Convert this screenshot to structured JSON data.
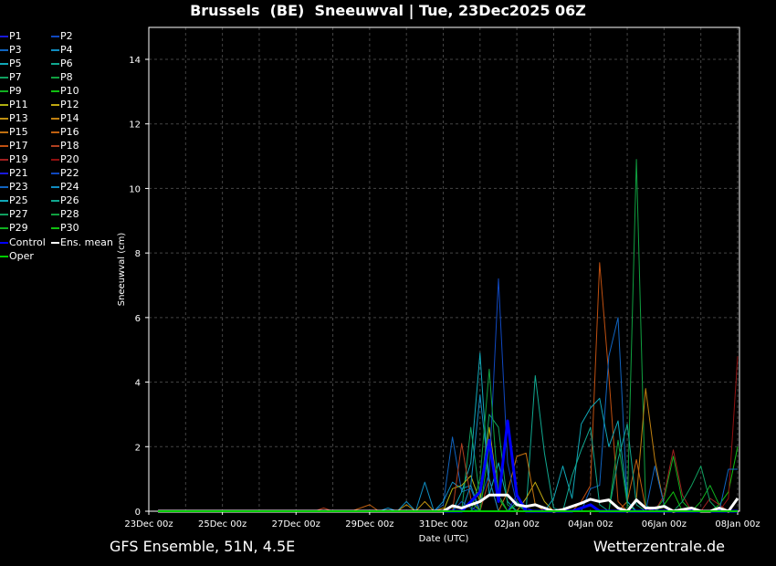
{
  "title": "Brussels  (BE)  Sneeuwval | Tue, 23Dec2025 06Z",
  "footer": {
    "left": "GFS Ensemble, 51N, 4.5E",
    "right": "Wetterzentrale.de"
  },
  "chart_data": {
    "type": "line",
    "ylabel": "Sneeuwval (cm)",
    "xlabel": "Date (UTC)",
    "ylim": [
      0,
      15
    ],
    "yticks": [
      0,
      2,
      4,
      6,
      8,
      10,
      12,
      14
    ],
    "xrange": [
      "23Dec 00z",
      "08Jan 00z"
    ],
    "series_start": "23Dec 06z",
    "xticks": [
      "23Dec 00z",
      "25Dec 00z",
      "27Dec 00z",
      "29Dec 00z",
      "31Dec 00z",
      "02Jan 00z",
      "04Jan 00z",
      "06Jan 00z",
      "08Jan 00z"
    ],
    "grid": true,
    "legend_position": "left-outside",
    "note_values": "points listed as [time, cm]; unlisted times are 0",
    "series": [
      {
        "name": "P1",
        "color": "#1a1adc",
        "points": []
      },
      {
        "name": "P2",
        "color": "#1048c0",
        "points": [
          [
            "31Dec 12z",
            0.3
          ],
          [
            "31Dec 18z",
            0.1
          ]
        ]
      },
      {
        "name": "P3",
        "color": "#1064c0",
        "points": [
          [
            "31Dec 00z",
            0.2
          ],
          [
            "31Dec 06z",
            2.3
          ],
          [
            "31Dec 12z",
            0.6
          ],
          [
            "31Dec 18z",
            0.7
          ]
        ]
      },
      {
        "name": "P4",
        "color": "#108cc0",
        "points": [
          [
            "29Dec 12z",
            0.1
          ],
          [
            "30Dec 00z",
            0.3
          ],
          [
            "30Dec 12z",
            0.9
          ],
          [
            "31Dec 00z",
            0.3
          ],
          [
            "31Dec 06z",
            0.9
          ],
          [
            "31Dec 12z",
            0.7
          ],
          [
            "31Dec 18z",
            0.8
          ]
        ]
      },
      {
        "name": "P5",
        "color": "#10a8b8",
        "points": [
          [
            "31Dec 12z",
            0.6
          ],
          [
            "31Dec 18z",
            1.5
          ],
          [
            "01Jan 00z",
            4.9
          ],
          [
            "01Jan 06z",
            0.5
          ],
          [
            "01Jan 12z",
            1.5
          ],
          [
            "01Jan 18z",
            0.3
          ]
        ]
      },
      {
        "name": "P6",
        "color": "#10a890",
        "points": [
          [
            "02Jan 00z",
            0.3
          ],
          [
            "02Jan 12z",
            4.2
          ],
          [
            "02Jan 18z",
            1.8
          ],
          [
            "03Jan 00z",
            0.1
          ]
        ]
      },
      {
        "name": "P7",
        "color": "#10a060",
        "points": [
          [
            "31Dec 18z",
            2.6
          ],
          [
            "01Jan 00z",
            0.4
          ],
          [
            "01Jan 06z",
            3.0
          ],
          [
            "01Jan 12z",
            2.6
          ],
          [
            "01Jan 18z",
            0.2
          ]
        ]
      },
      {
        "name": "P8",
        "color": "#10a040",
        "points": [
          [
            "05Jan 00z",
            0.1
          ],
          [
            "05Jan 06z",
            10.9
          ],
          [
            "05Jan 12z",
            0.2
          ]
        ]
      },
      {
        "name": "P9",
        "color": "#10b020",
        "points": [
          [
            "06Jan 00z",
            0.4
          ],
          [
            "06Jan 06z",
            1.7
          ],
          [
            "06Jan 12z",
            0.3
          ],
          [
            "07Jan 00z",
            0.3
          ],
          [
            "07Jan 06z",
            0.8
          ],
          [
            "07Jan 12z",
            0.2
          ]
        ]
      },
      {
        "name": "P10",
        "color": "#10c010",
        "points": [
          [
            "07Jan 12z",
            0.2
          ],
          [
            "07Jan 18z",
            0.6
          ],
          [
            "08Jan 00z",
            2.0
          ]
        ]
      },
      {
        "name": "P11",
        "color": "#b0b010",
        "points": [
          [
            "31Dec 06z",
            0.7
          ],
          [
            "31Dec 12z",
            0.8
          ],
          [
            "31Dec 18z",
            1.1
          ],
          [
            "01Jan 00z",
            0.3
          ],
          [
            "01Jan 06z",
            2.6
          ],
          [
            "01Jan 12z",
            0.5
          ]
        ]
      },
      {
        "name": "P12",
        "color": "#c0a810",
        "points": [
          [
            "02Jan 06z",
            0.4
          ],
          [
            "02Jan 12z",
            0.9
          ],
          [
            "02Jan 18z",
            0.3
          ]
        ]
      },
      {
        "name": "P13",
        "color": "#c09010",
        "points": [
          [
            "30Dec 00z",
            0.2
          ],
          [
            "30Dec 12z",
            0.3
          ],
          [
            "31Dec 00z",
            0.1
          ]
        ]
      },
      {
        "name": "P14",
        "color": "#c08010",
        "points": [
          [
            "05Jan 06z",
            0.4
          ],
          [
            "05Jan 12z",
            3.8
          ],
          [
            "05Jan 18z",
            1.6
          ],
          [
            "06Jan 00z",
            0.2
          ]
        ]
      },
      {
        "name": "P15",
        "color": "#c07010",
        "points": [
          [
            "01Jan 18z",
            0.6
          ],
          [
            "02Jan 00z",
            1.7
          ],
          [
            "02Jan 06z",
            1.8
          ],
          [
            "02Jan 12z",
            0.2
          ]
        ]
      },
      {
        "name": "P16",
        "color": "#c06010",
        "points": [
          [
            "28Dec 18z",
            0.1
          ],
          [
            "29Dec 00z",
            0.2
          ],
          [
            "05Jan 00z",
            0.3
          ],
          [
            "05Jan 06z",
            1.6
          ],
          [
            "05Jan 12z",
            0.1
          ]
        ]
      },
      {
        "name": "P17",
        "color": "#c05010",
        "points": [
          [
            "03Jan 18z",
            0.3
          ],
          [
            "04Jan 00z",
            0.8
          ],
          [
            "04Jan 06z",
            7.7
          ],
          [
            "04Jan 12z",
            4.2
          ],
          [
            "04Jan 18z",
            0.3
          ]
        ]
      },
      {
        "name": "P18",
        "color": "#b04020",
        "points": [
          [
            "27Dec 18z",
            0.1
          ],
          [
            "31Dec 12z",
            2.1
          ],
          [
            "31Dec 18z",
            0.4
          ],
          [
            "01Jan 06z",
            1.0
          ]
        ]
      },
      {
        "name": "P19",
        "color": "#a02020",
        "points": [
          [
            "06Jan 00z",
            0.5
          ],
          [
            "06Jan 06z",
            1.9
          ],
          [
            "06Jan 12z",
            0.5
          ],
          [
            "07Jan 06z",
            0.4
          ],
          [
            "07Jan 12z",
            0.2
          ]
        ]
      },
      {
        "name": "P20",
        "color": "#901010",
        "points": [
          [
            "07Jan 18z",
            0.4
          ],
          [
            "08Jan 00z",
            4.8
          ]
        ]
      },
      {
        "name": "P21",
        "color": "#1a1adc",
        "points": [
          [
            "02Jan 00z",
            0.5
          ],
          [
            "02Jan 06z",
            0.1
          ]
        ]
      },
      {
        "name": "P22",
        "color": "#1048c0",
        "points": [
          [
            "01Jan 00z",
            0.3
          ],
          [
            "01Jan 06z",
            1.2
          ],
          [
            "01Jan 12z",
            7.2
          ],
          [
            "01Jan 18z",
            1.5
          ],
          [
            "02Jan 00z",
            0.2
          ]
        ]
      },
      {
        "name": "P23",
        "color": "#1064c0",
        "points": [
          [
            "04Jan 00z",
            0.7
          ],
          [
            "04Jan 06z",
            0.8
          ],
          [
            "04Jan 12z",
            4.8
          ],
          [
            "04Jan 18z",
            6.0
          ],
          [
            "05Jan 00z",
            0.3
          ],
          [
            "05Jan 18z",
            1.4
          ],
          [
            "06Jan 00z",
            0.2
          ],
          [
            "07Jan 18z",
            1.3
          ],
          [
            "08Jan 00z",
            1.3
          ]
        ]
      },
      {
        "name": "P24",
        "color": "#108cc0",
        "points": [
          [
            "31Dec 18z",
            0.8
          ],
          [
            "01Jan 00z",
            3.6
          ],
          [
            "01Jan 06z",
            1.0
          ]
        ]
      },
      {
        "name": "P25",
        "color": "#10a8b8",
        "points": [
          [
            "03Jan 00z",
            0.4
          ],
          [
            "03Jan 06z",
            1.4
          ],
          [
            "03Jan 12z",
            0.4
          ],
          [
            "03Jan 18z",
            2.7
          ],
          [
            "04Jan 00z",
            3.2
          ],
          [
            "04Jan 06z",
            3.5
          ],
          [
            "04Jan 12z",
            2.0
          ],
          [
            "04Jan 18z",
            2.8
          ],
          [
            "05Jan 00z",
            0.3
          ]
        ]
      },
      {
        "name": "P26",
        "color": "#10a890",
        "points": [
          [
            "03Jan 12z",
            1.1
          ],
          [
            "03Jan 18z",
            1.9
          ],
          [
            "04Jan 00z",
            2.6
          ],
          [
            "04Jan 06z",
            0.2
          ],
          [
            "04Jan 18z",
            1.6
          ],
          [
            "05Jan 00z",
            2.7
          ],
          [
            "05Jan 06z",
            0.2
          ]
        ]
      },
      {
        "name": "P27",
        "color": "#10a060",
        "points": [
          [
            "06Jan 12z",
            0.3
          ],
          [
            "06Jan 18z",
            0.8
          ],
          [
            "07Jan 00z",
            1.4
          ],
          [
            "07Jan 06z",
            0.3
          ]
        ]
      },
      {
        "name": "P28",
        "color": "#10a040",
        "points": [
          [
            "01Jan 00z",
            1.0
          ],
          [
            "01Jan 06z",
            4.4
          ],
          [
            "01Jan 12z",
            0.5
          ],
          [
            "04Jan 18z",
            2.2
          ],
          [
            "05Jan 00z",
            0.2
          ]
        ]
      },
      {
        "name": "P29",
        "color": "#10b020",
        "points": [
          [
            "31Dec 18z",
            0.3
          ],
          [
            "01Jan 06z",
            2.0
          ],
          [
            "01Jan 12z",
            0.4
          ],
          [
            "02Jan 00z",
            0.2
          ]
        ]
      },
      {
        "name": "P30",
        "color": "#10c010",
        "points": [
          [
            "06Jan 00z",
            0.2
          ],
          [
            "06Jan 06z",
            0.6
          ]
        ]
      },
      {
        "name": "Control",
        "color": "#0000ff",
        "width": 3,
        "points": [
          [
            "31Dec 18z",
            0.3
          ],
          [
            "01Jan 00z",
            0.6
          ],
          [
            "01Jan 06z",
            2.2
          ],
          [
            "01Jan 12z",
            0.3
          ],
          [
            "01Jan 18z",
            2.8
          ],
          [
            "02Jan 00z",
            0.5
          ],
          [
            "03Jan 18z",
            0.1
          ],
          [
            "04Jan 00z",
            0.2
          ]
        ]
      },
      {
        "name": "Ens. mean",
        "color": "#ffffff",
        "width": 3,
        "points": [
          [
            "31Dec 06z",
            0.17
          ],
          [
            "31Dec 12z",
            0.1
          ],
          [
            "31Dec 18z",
            0.2
          ],
          [
            "01Jan 00z",
            0.3
          ],
          [
            "01Jan 06z",
            0.5
          ],
          [
            "01Jan 12z",
            0.5
          ],
          [
            "01Jan 18z",
            0.5
          ],
          [
            "02Jan 00z",
            0.2
          ],
          [
            "02Jan 06z",
            0.15
          ],
          [
            "02Jan 12z",
            0.2
          ],
          [
            "02Jan 18z",
            0.1
          ],
          [
            "03Jan 06z",
            0.05
          ],
          [
            "03Jan 12z",
            0.15
          ],
          [
            "03Jan 18z",
            0.25
          ],
          [
            "04Jan 00z",
            0.37
          ],
          [
            "04Jan 06z",
            0.3
          ],
          [
            "04Jan 12z",
            0.35
          ],
          [
            "04Jan 18z",
            0.1
          ],
          [
            "05Jan 06z",
            0.35
          ],
          [
            "05Jan 12z",
            0.1
          ],
          [
            "05Jan 18z",
            0.1
          ],
          [
            "06Jan 00z",
            0.15
          ],
          [
            "06Jan 12z",
            0.05
          ],
          [
            "06Jan 18z",
            0.1
          ],
          [
            "07Jan 12z",
            0.1
          ],
          [
            "08Jan 00z",
            0.4
          ]
        ]
      },
      {
        "name": "Oper",
        "color": "#00cc00",
        "width": 2,
        "points": []
      }
    ]
  }
}
